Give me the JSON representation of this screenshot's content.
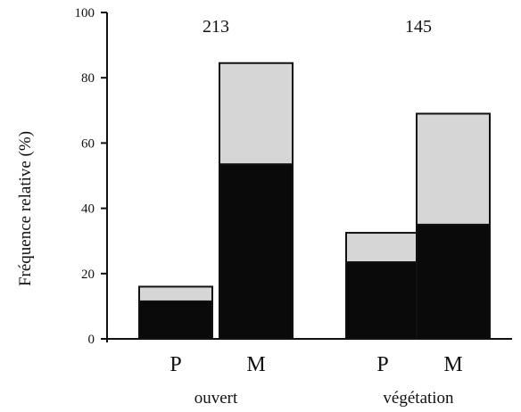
{
  "chart_data": {
    "type": "bar",
    "stacked": true,
    "title": "",
    "xlabel": "",
    "ylabel": "Fréquence relative (%)",
    "ylim": [
      0,
      100
    ],
    "yticks": [
      0,
      20,
      40,
      60,
      80,
      100
    ],
    "grid": false,
    "groups": [
      {
        "label": "ouvert",
        "count": "213",
        "categories": [
          "P",
          "M"
        ]
      },
      {
        "label": "végétation",
        "count": "145",
        "categories": [
          "P",
          "M"
        ]
      }
    ],
    "categories": [
      "P",
      "M",
      "P",
      "M"
    ],
    "series": [
      {
        "values": [
          11.5,
          53.5,
          23.5,
          35
        ],
        "color": "#0a0a0a"
      },
      {
        "values": [
          4.5,
          31,
          9,
          34
        ],
        "color": "#d6d6d6"
      }
    ]
  }
}
